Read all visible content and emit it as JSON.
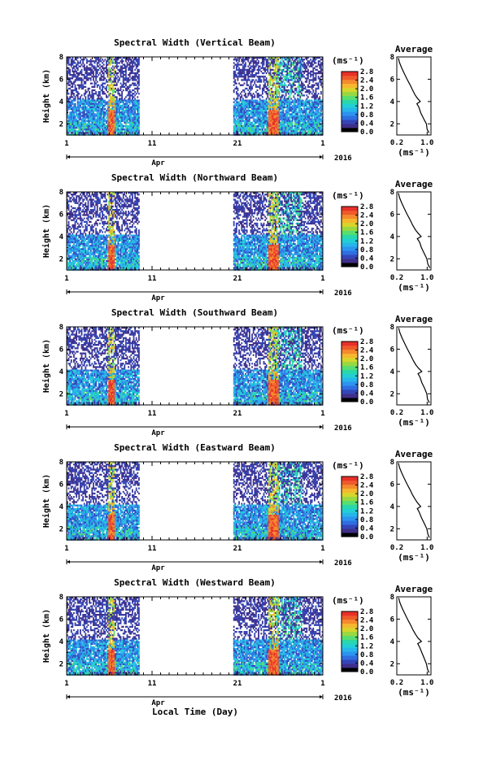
{
  "xlabel": "Local Time (Day)",
  "colorbar": {
    "colors": [
      "#000000",
      "#3f2f8a",
      "#3346b8",
      "#2f6ee0",
      "#2d93f0",
      "#27b5ea",
      "#22cfd4",
      "#2ad7a8",
      "#59dd6f",
      "#9ad840",
      "#d7d52c",
      "#f5b82f",
      "#f48a2d",
      "#ef5a2a",
      "#e8302a"
    ],
    "background": "#ffffff"
  },
  "chart_data": [
    {
      "type": "heatmap",
      "title": "Spectral Width (Vertical Beam)",
      "ylabel": "Height (km)",
      "ylim": [
        1,
        8
      ],
      "yticks": [
        "2",
        "4",
        "6",
        "8"
      ],
      "xlim": [
        1,
        31
      ],
      "xticks": [
        "1",
        "11",
        "21",
        "1"
      ],
      "month_label": "Apr",
      "year_label": "2016",
      "data_gaps_days": [
        [
          9.5,
          20.5
        ]
      ],
      "colorbar_unit": "(ms⁻¹)",
      "colorbar_ticks": [
        "0.0",
        "0.4",
        "0.8",
        "1.2",
        "1.6",
        "2.0",
        "2.4",
        "2.8"
      ],
      "colorbar_range": [
        0.0,
        2.8
      ],
      "average": {
        "title": "Average",
        "xlabel": "(ms⁻¹)",
        "xticks": [
          "0.2",
          "1.0"
        ],
        "xlim": [
          0.2,
          1.1
        ],
        "ylim": [
          1,
          8
        ],
        "yticks": [
          "2",
          "4",
          "6",
          "8"
        ],
        "height_km": [
          1.2,
          1.5,
          2.0,
          2.5,
          3.0,
          3.5,
          3.8,
          4.0,
          4.3,
          4.6,
          5.0,
          5.5,
          6.0,
          6.5,
          7.0,
          7.5,
          7.9
        ],
        "width_ms": [
          1.05,
          1.0,
          0.98,
          0.9,
          0.83,
          0.78,
          0.73,
          0.82,
          0.74,
          0.68,
          0.62,
          0.55,
          0.47,
          0.4,
          0.33,
          0.27,
          0.24
        ]
      }
    },
    {
      "type": "heatmap",
      "title": "Spectral Width (Northward Beam)",
      "ylabel": "Height (km)",
      "ylim": [
        1,
        8
      ],
      "yticks": [
        "2",
        "4",
        "6",
        "8"
      ],
      "xlim": [
        1,
        31
      ],
      "xticks": [
        "1",
        "11",
        "21",
        "1"
      ],
      "month_label": "Apr",
      "year_label": "2016",
      "data_gaps_days": [
        [
          9.5,
          20.5
        ]
      ],
      "colorbar_unit": "(ms⁻¹)",
      "colorbar_ticks": [
        "0.0",
        "0.4",
        "0.8",
        "1.2",
        "1.6",
        "2.0",
        "2.4",
        "2.8"
      ],
      "colorbar_range": [
        0.0,
        2.8
      ],
      "average": {
        "title": "Average",
        "xlabel": "(ms⁻¹)",
        "xticks": [
          "0.2",
          "1.0"
        ],
        "xlim": [
          0.2,
          1.1
        ],
        "ylim": [
          1,
          8
        ],
        "yticks": [
          "2",
          "4",
          "6",
          "8"
        ],
        "height_km": [
          1.2,
          1.5,
          2.0,
          2.5,
          3.0,
          3.5,
          3.8,
          4.0,
          4.3,
          4.6,
          5.0,
          5.5,
          6.0,
          6.5,
          7.0,
          7.5,
          7.9
        ],
        "width_ms": [
          1.07,
          1.02,
          0.99,
          0.92,
          0.85,
          0.8,
          0.74,
          0.84,
          0.76,
          0.69,
          0.62,
          0.55,
          0.47,
          0.4,
          0.33,
          0.27,
          0.24
        ]
      }
    },
    {
      "type": "heatmap",
      "title": "Spectral Width (Southward Beam)",
      "ylabel": "Height (km)",
      "ylim": [
        1,
        8
      ],
      "yticks": [
        "2",
        "4",
        "6",
        "8"
      ],
      "xlim": [
        1,
        31
      ],
      "xticks": [
        "1",
        "11",
        "21",
        "1"
      ],
      "month_label": "Apr",
      "year_label": "2016",
      "data_gaps_days": [
        [
          9.5,
          20.5
        ]
      ],
      "colorbar_unit": "(ms⁻¹)",
      "colorbar_ticks": [
        "0.0",
        "0.4",
        "0.8",
        "1.2",
        "1.6",
        "2.0",
        "2.4",
        "2.8"
      ],
      "colorbar_range": [
        0.0,
        2.8
      ],
      "average": {
        "title": "Average",
        "xlabel": "(ms⁻¹)",
        "xticks": [
          "0.2",
          "1.0"
        ],
        "xlim": [
          0.2,
          1.1
        ],
        "ylim": [
          1,
          8
        ],
        "yticks": [
          "2",
          "4",
          "6",
          "8"
        ],
        "height_km": [
          1.2,
          1.5,
          2.0,
          2.5,
          3.0,
          3.5,
          3.8,
          4.0,
          4.3,
          4.6,
          5.0,
          5.5,
          6.0,
          6.5,
          7.0,
          7.5,
          7.9
        ],
        "width_ms": [
          1.06,
          1.01,
          0.99,
          0.93,
          0.86,
          0.81,
          0.76,
          0.86,
          0.77,
          0.7,
          0.63,
          0.56,
          0.48,
          0.41,
          0.34,
          0.28,
          0.25
        ]
      }
    },
    {
      "type": "heatmap",
      "title": "Spectral Width (Eastward Beam)",
      "ylabel": "Height (km)",
      "ylim": [
        1,
        8
      ],
      "yticks": [
        "2",
        "4",
        "6",
        "8"
      ],
      "xlim": [
        1,
        31
      ],
      "xticks": [
        "1",
        "11",
        "21",
        "1"
      ],
      "month_label": "Apr",
      "year_label": "2016",
      "data_gaps_days": [
        [
          9.5,
          20.5
        ]
      ],
      "colorbar_unit": "(ms⁻¹)",
      "colorbar_ticks": [
        "0.0",
        "0.4",
        "0.8",
        "1.2",
        "1.6",
        "2.0",
        "2.4",
        "2.8"
      ],
      "colorbar_range": [
        0.0,
        2.8
      ],
      "average": {
        "title": "Average",
        "xlabel": "(ms⁻¹)",
        "xticks": [
          "0.2",
          "1.0"
        ],
        "xlim": [
          0.2,
          1.1
        ],
        "ylim": [
          1,
          8
        ],
        "yticks": [
          "2",
          "4",
          "6",
          "8"
        ],
        "height_km": [
          1.2,
          1.5,
          2.0,
          2.5,
          3.0,
          3.5,
          3.8,
          4.0,
          4.3,
          4.6,
          5.0,
          5.5,
          6.0,
          6.5,
          7.0,
          7.5,
          7.9
        ],
        "width_ms": [
          1.06,
          1.02,
          0.99,
          0.92,
          0.85,
          0.79,
          0.74,
          0.83,
          0.75,
          0.69,
          0.62,
          0.55,
          0.47,
          0.4,
          0.33,
          0.27,
          0.24
        ]
      }
    },
    {
      "type": "heatmap",
      "title": "Spectral Width (Westward Beam)",
      "ylabel": "Height (km)",
      "ylim": [
        1,
        8
      ],
      "yticks": [
        "2",
        "4",
        "6",
        "8"
      ],
      "xlim": [
        1,
        31
      ],
      "xticks": [
        "1",
        "11",
        "21",
        "1"
      ],
      "month_label": "Apr",
      "year_label": "2016",
      "data_gaps_days": [
        [
          9.5,
          20.5
        ]
      ],
      "colorbar_unit": "(ms⁻¹)",
      "colorbar_ticks": [
        "0.0",
        "0.4",
        "0.8",
        "1.2",
        "1.6",
        "2.0",
        "2.4",
        "2.8"
      ],
      "colorbar_range": [
        0.0,
        2.8
      ],
      "average": {
        "title": "Average",
        "xlabel": "(ms⁻¹)",
        "xticks": [
          "0.2",
          "1.0"
        ],
        "xlim": [
          0.2,
          1.1
        ],
        "ylim": [
          1,
          8
        ],
        "yticks": [
          "2",
          "4",
          "6",
          "8"
        ],
        "height_km": [
          1.2,
          1.5,
          2.0,
          2.5,
          3.0,
          3.5,
          3.8,
          4.0,
          4.3,
          4.6,
          5.0,
          5.5,
          6.0,
          6.5,
          7.0,
          7.5,
          7.9
        ],
        "width_ms": [
          1.05,
          1.01,
          0.98,
          0.92,
          0.86,
          0.8,
          0.75,
          0.85,
          0.76,
          0.7,
          0.63,
          0.56,
          0.48,
          0.41,
          0.34,
          0.28,
          0.25
        ]
      }
    }
  ]
}
